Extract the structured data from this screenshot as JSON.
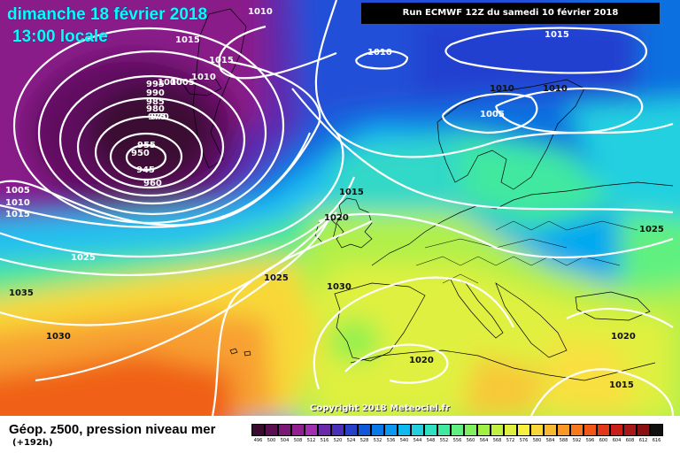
{
  "header": {
    "date": "dimanche 18 février 2018",
    "local_time": "13:00 locale",
    "run_info": "Run ECMWF 12Z du samedi 10 février 2018"
  },
  "copyright": "Copyright 2018 Meteociel.fr",
  "footer": {
    "title": "Géop. z500, pression niveau mer",
    "lead": "(+192h)"
  },
  "legend": {
    "ticks": [
      "496",
      "500",
      "504",
      "508",
      "512",
      "516",
      "520",
      "524",
      "528",
      "532",
      "536",
      "540",
      "544",
      "548",
      "552",
      "556",
      "560",
      "564",
      "568",
      "572",
      "576",
      "580",
      "584",
      "588",
      "592",
      "596",
      "600",
      "604",
      "608",
      "612",
      "616"
    ],
    "colors": [
      "#3a0a30",
      "#5a1050",
      "#7a1878",
      "#902090",
      "#a030b0",
      "#6a2aa8",
      "#4a30b8",
      "#2840c8",
      "#1058d8",
      "#0a78e8",
      "#0a98f0",
      "#10b8f0",
      "#20d0e0",
      "#30e0c0",
      "#40e8a0",
      "#60f080",
      "#80f060",
      "#a0f048",
      "#c0f040",
      "#e0f040",
      "#f8f040",
      "#f8d838",
      "#f8b830",
      "#f89828",
      "#f87820",
      "#f05818",
      "#e03818",
      "#c82018",
      "#a81818",
      "#881010",
      "#101010"
    ]
  },
  "pressure_labels": [
    "1010",
    "1015",
    "1015",
    "1010",
    "1015",
    "1010",
    "1005",
    "1000",
    "995",
    "990",
    "985",
    "980",
    "975",
    "970",
    "955",
    "950",
    "945",
    "960",
    "1005",
    "1010",
    "1015",
    "1025",
    "1035",
    "1030",
    "1025",
    "1030",
    "1015",
    "1020",
    "1010",
    "1010",
    "1005",
    "1025",
    "1020",
    "1020",
    "1015"
  ],
  "colors": {
    "title_cyan": "#00ffff",
    "isobar": "#ffffff",
    "coast": "#000000",
    "run_box": "#000000"
  }
}
